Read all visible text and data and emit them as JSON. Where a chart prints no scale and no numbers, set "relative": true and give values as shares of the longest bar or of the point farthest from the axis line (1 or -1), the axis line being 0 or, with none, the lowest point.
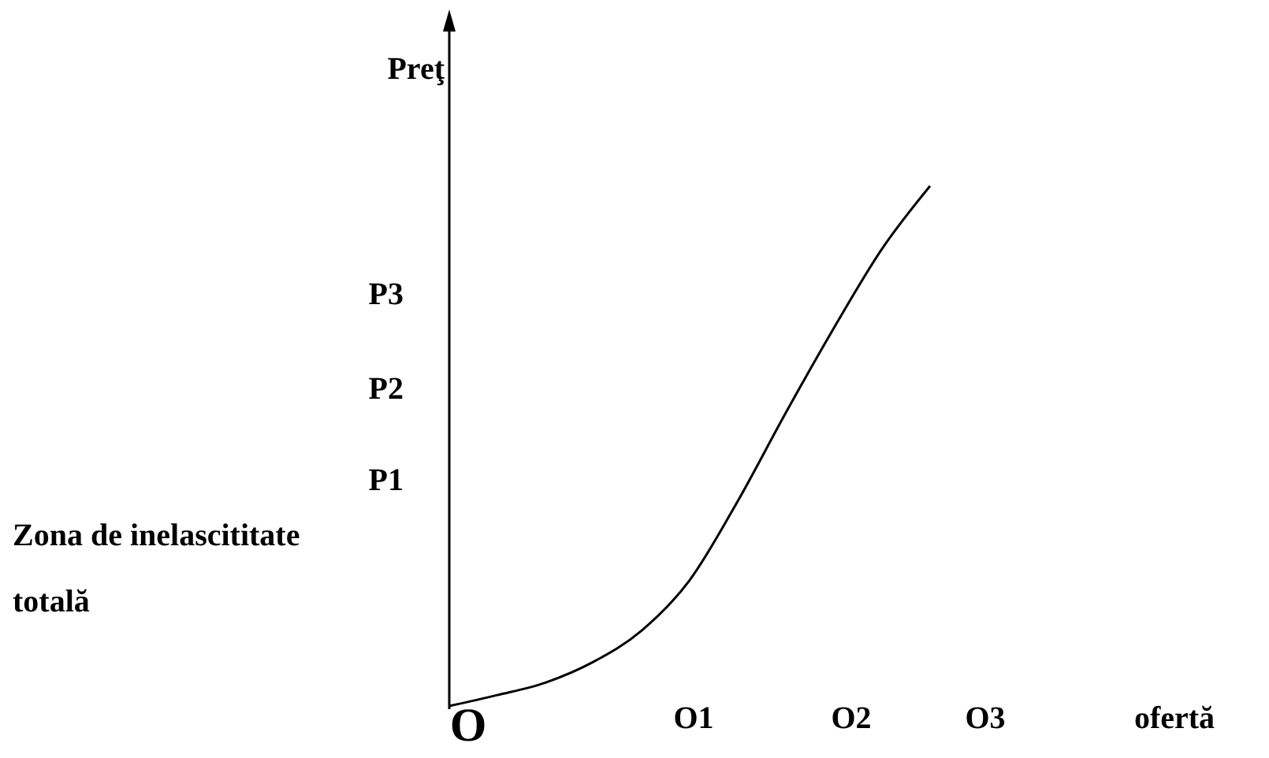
{
  "chart_data": {
    "type": "line",
    "relative": true,
    "ylabel": "Preţ",
    "color": "#000000",
    "categories": [
      null,
      null,
      null,
      null,
      null,
      null,
      null,
      null,
      null,
      null,
      null
    ],
    "values": [
      0,
      0.021,
      0.045,
      0.085,
      0.145,
      0.242,
      0.394,
      0.564,
      0.727,
      0.879,
      1
    ],
    "annotations": [
      "O",
      "P1",
      "P2",
      "P3",
      "O1",
      "O2",
      "O3",
      "ofertă",
      "Zona de inelascititate totală"
    ],
    "marker": "none",
    "line_style": "solid"
  }
}
